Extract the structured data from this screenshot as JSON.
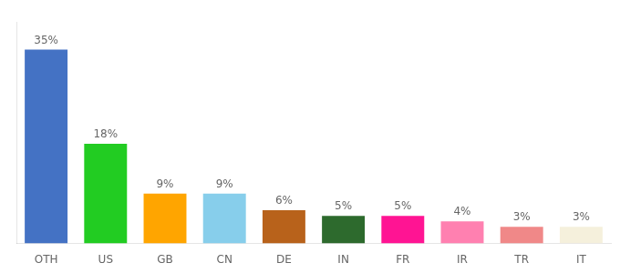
{
  "chart_data": {
    "type": "bar",
    "categories": [
      "OTH",
      "US",
      "GB",
      "CN",
      "DE",
      "IN",
      "FR",
      "IR",
      "TR",
      "IT"
    ],
    "values": [
      35,
      18,
      9,
      9,
      6,
      5,
      5,
      4,
      3,
      3
    ],
    "value_labels": [
      "35%",
      "18%",
      "9%",
      "9%",
      "6%",
      "5%",
      "5%",
      "4%",
      "3%",
      "3%"
    ],
    "colors": [
      "#4472c4",
      "#22cc22",
      "#ffa500",
      "#87ceeb",
      "#b8621b",
      "#2d6a2d",
      "#ff1493",
      "#ff80b0",
      "#f08888",
      "#f5f0dc"
    ],
    "ylim": [
      0,
      40
    ],
    "data_labels": true,
    "tick_labels": "x",
    "grid": false
  }
}
